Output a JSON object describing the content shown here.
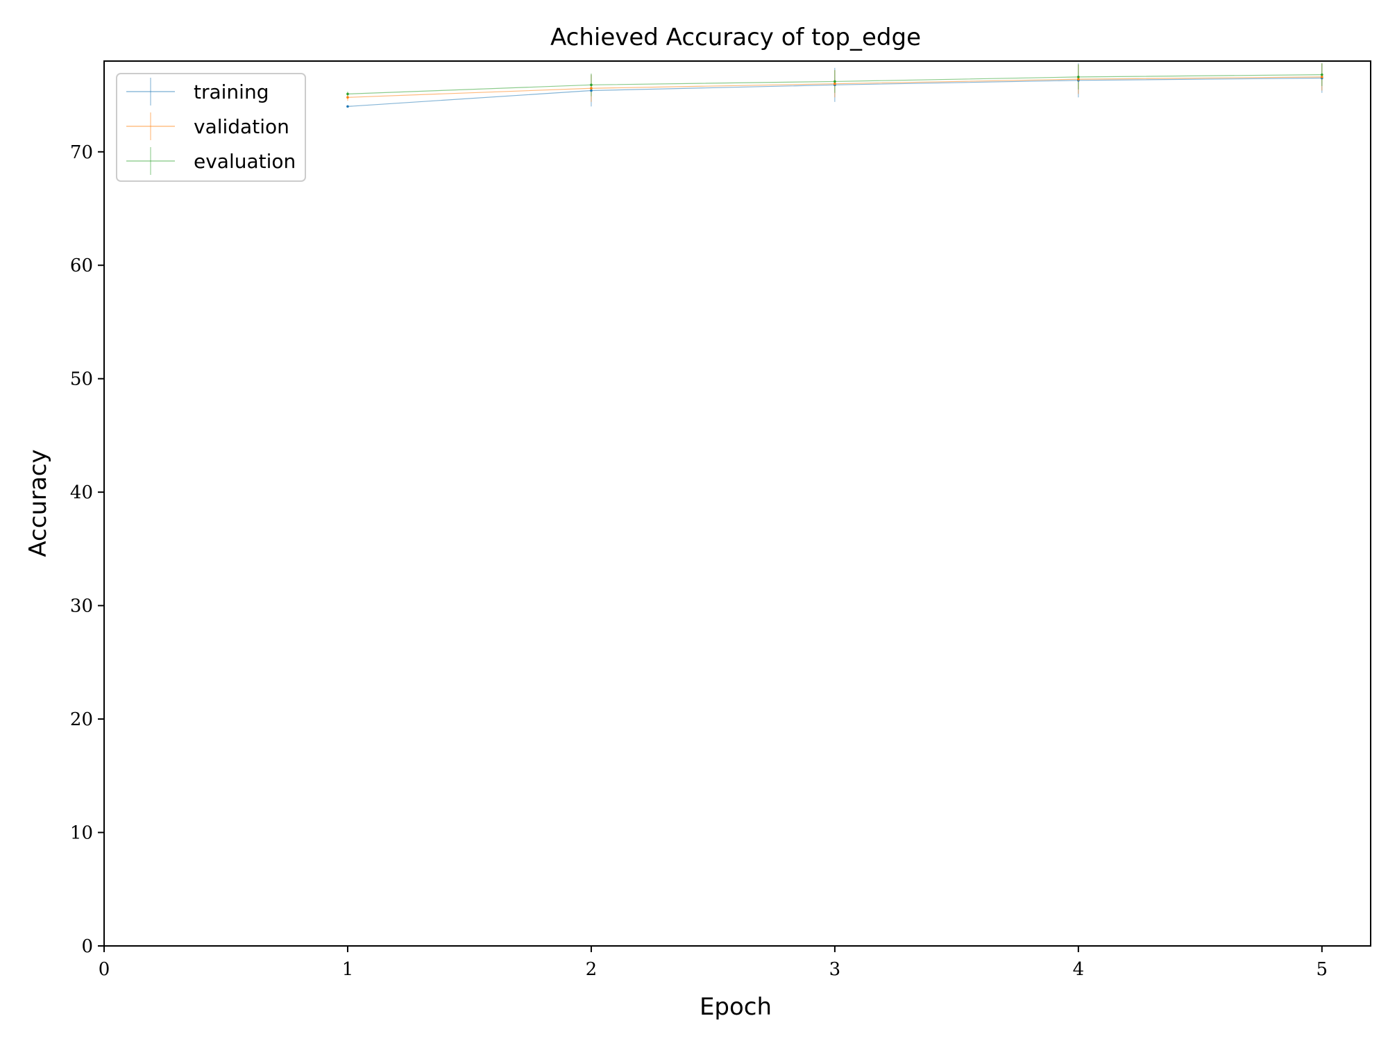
{
  "chart_data": {
    "type": "line",
    "title": "Achieved Accuracy of top_edge",
    "xlabel": "Epoch",
    "ylabel": "Accuracy",
    "xlim": [
      0,
      5.2
    ],
    "ylim": [
      0,
      78
    ],
    "xticks": [
      0,
      1,
      2,
      3,
      4,
      5
    ],
    "yticks": [
      0,
      10,
      20,
      30,
      40,
      50,
      60,
      70
    ],
    "grid": false,
    "legend": "top-left",
    "x": [
      1,
      2,
      3,
      4,
      5
    ],
    "series": [
      {
        "name": "training",
        "color": "#1f77b4",
        "values": [
          74.0,
          75.4,
          75.9,
          76.3,
          76.5
        ],
        "error": [
          0.1,
          1.4,
          1.5,
          1.5,
          1.3
        ]
      },
      {
        "name": "validation",
        "color": "#ff7f0e",
        "values": [
          74.8,
          75.6,
          76.0,
          76.4,
          76.6
        ],
        "error": [
          0.3,
          1.2,
          1.2,
          1.3,
          1.2
        ]
      },
      {
        "name": "evaluation",
        "color": "#2ca02c",
        "values": [
          75.1,
          75.9,
          76.2,
          76.6,
          76.8
        ],
        "error": [
          0.2,
          1.0,
          1.0,
          1.1,
          1.0
        ]
      }
    ]
  }
}
